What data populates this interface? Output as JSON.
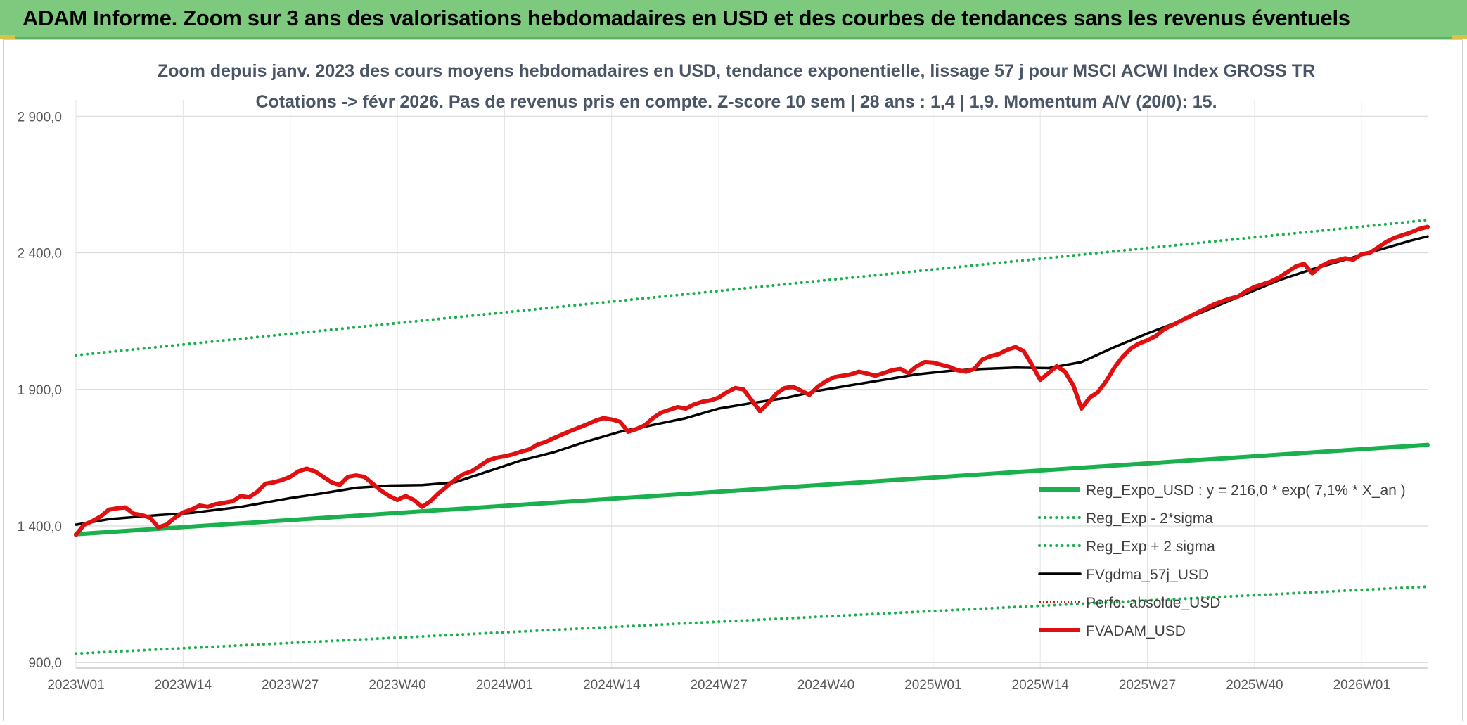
{
  "header": {
    "title": "ADAM Informe. Zoom sur 3 ans des valorisations hebdomadaires en USD et des courbes de tendances sans les revenus éventuels"
  },
  "chart_data": {
    "type": "line",
    "title": "Zoom depuis janv. 2023 des cours moyens hebdomadaires en USD, tendance exponentielle, lissage 57 j pour MSCI ACWI Index GROSS TR",
    "subtitle": "Cotations -> févr 2026. Pas de revenus pris en compte. Z-score 10 sem | 28 ans : 1,4 | 1,9. Momentum A/V (20/0): 15.",
    "xlabel": "",
    "ylabel": "",
    "ylim": [
      880,
      2960
    ],
    "yticks": [
      {
        "value": 900,
        "label": "900,0"
      },
      {
        "value": 1400,
        "label": "1 400,0"
      },
      {
        "value": 1900,
        "label": "1 900,0"
      },
      {
        "value": 2400,
        "label": "2 400,0"
      },
      {
        "value": 2900,
        "label": "2 900,0"
      }
    ],
    "xlim": [
      0,
      164
    ],
    "xticks": [
      {
        "index": 0,
        "label": "2023W01"
      },
      {
        "index": 13,
        "label": "2023W14"
      },
      {
        "index": 26,
        "label": "2023W27"
      },
      {
        "index": 39,
        "label": "2023W40"
      },
      {
        "index": 52,
        "label": "2024W01"
      },
      {
        "index": 65,
        "label": "2024W14"
      },
      {
        "index": 78,
        "label": "2024W27"
      },
      {
        "index": 91,
        "label": "2024W40"
      },
      {
        "index": 104,
        "label": "2025W01"
      },
      {
        "index": 117,
        "label": "2025W14"
      },
      {
        "index": 130,
        "label": "2025W27"
      },
      {
        "index": 143,
        "label": "2025W40"
      },
      {
        "index": 156,
        "label": "2026W01"
      }
    ],
    "grid": true,
    "legend_position": "bottom-right",
    "series": [
      {
        "name": "Reg_Expo_USD : y = 216,0 * exp( 7,1% *  X_an )",
        "color": "#1ab04e",
        "style": "solid-thick",
        "points": [
          [
            0,
            1370
          ],
          [
            164,
            1697
          ]
        ]
      },
      {
        "name": "Reg_Exp - 2*sigma",
        "color": "#1ab04e",
        "style": "dotted",
        "points": [
          [
            0,
            933
          ],
          [
            164,
            1178
          ]
        ]
      },
      {
        "name": "Reg_Exp + 2 sigma",
        "color": "#1ab04e",
        "style": "dotted",
        "points": [
          [
            0,
            2025
          ],
          [
            164,
            2520
          ]
        ]
      },
      {
        "name": "FVgdma_57j_USD",
        "color": "#000000",
        "style": "solid",
        "points": [
          [
            0,
            1405
          ],
          [
            4,
            1425
          ],
          [
            10,
            1440
          ],
          [
            14,
            1448
          ],
          [
            20,
            1470
          ],
          [
            26,
            1502
          ],
          [
            30,
            1520
          ],
          [
            34,
            1540
          ],
          [
            38,
            1548
          ],
          [
            42,
            1550
          ],
          [
            46,
            1560
          ],
          [
            50,
            1600
          ],
          [
            54,
            1640
          ],
          [
            58,
            1670
          ],
          [
            62,
            1710
          ],
          [
            66,
            1745
          ],
          [
            70,
            1770
          ],
          [
            74,
            1795
          ],
          [
            78,
            1830
          ],
          [
            82,
            1850
          ],
          [
            86,
            1868
          ],
          [
            90,
            1895
          ],
          [
            94,
            1915
          ],
          [
            98,
            1935
          ],
          [
            102,
            1955
          ],
          [
            106,
            1968
          ],
          [
            110,
            1975
          ],
          [
            114,
            1980
          ],
          [
            118,
            1978
          ],
          [
            122,
            2000
          ],
          [
            126,
            2055
          ],
          [
            130,
            2105
          ],
          [
            134,
            2150
          ],
          [
            138,
            2200
          ],
          [
            142,
            2250
          ],
          [
            146,
            2300
          ],
          [
            150,
            2340
          ],
          [
            154,
            2375
          ],
          [
            158,
            2410
          ],
          [
            162,
            2445
          ],
          [
            164,
            2460
          ]
        ]
      },
      {
        "name": "Perfo. absolue_USD",
        "color": "#e01010",
        "style": "dotted-thin",
        "points": []
      },
      {
        "name": "FVADAM_USD",
        "color": "#e01010",
        "style": "solid-thick",
        "points": [
          [
            0,
            1368
          ],
          [
            1,
            1405
          ],
          [
            2,
            1418
          ],
          [
            3,
            1435
          ],
          [
            4,
            1460
          ],
          [
            5,
            1465
          ],
          [
            6,
            1468
          ],
          [
            7,
            1445
          ],
          [
            8,
            1440
          ],
          [
            9,
            1430
          ],
          [
            10,
            1395
          ],
          [
            11,
            1405
          ],
          [
            12,
            1430
          ],
          [
            13,
            1450
          ],
          [
            14,
            1460
          ],
          [
            15,
            1475
          ],
          [
            16,
            1470
          ],
          [
            17,
            1480
          ],
          [
            18,
            1485
          ],
          [
            19,
            1490
          ],
          [
            20,
            1510
          ],
          [
            21,
            1505
          ],
          [
            22,
            1525
          ],
          [
            23,
            1555
          ],
          [
            24,
            1560
          ],
          [
            25,
            1568
          ],
          [
            26,
            1580
          ],
          [
            27,
            1600
          ],
          [
            28,
            1610
          ],
          [
            29,
            1600
          ],
          [
            30,
            1580
          ],
          [
            31,
            1560
          ],
          [
            32,
            1550
          ],
          [
            33,
            1580
          ],
          [
            34,
            1585
          ],
          [
            35,
            1580
          ],
          [
            36,
            1555
          ],
          [
            37,
            1530
          ],
          [
            38,
            1510
          ],
          [
            39,
            1495
          ],
          [
            40,
            1510
          ],
          [
            41,
            1495
          ],
          [
            42,
            1470
          ],
          [
            43,
            1490
          ],
          [
            44,
            1520
          ],
          [
            45,
            1545
          ],
          [
            46,
            1570
          ],
          [
            47,
            1590
          ],
          [
            48,
            1600
          ],
          [
            49,
            1620
          ],
          [
            50,
            1640
          ],
          [
            51,
            1650
          ],
          [
            52,
            1655
          ],
          [
            53,
            1662
          ],
          [
            54,
            1672
          ],
          [
            55,
            1680
          ],
          [
            56,
            1698
          ],
          [
            57,
            1708
          ],
          [
            58,
            1722
          ],
          [
            59,
            1735
          ],
          [
            60,
            1748
          ],
          [
            61,
            1760
          ],
          [
            62,
            1772
          ],
          [
            63,
            1785
          ],
          [
            64,
            1795
          ],
          [
            65,
            1790
          ],
          [
            66,
            1782
          ],
          [
            67,
            1745
          ],
          [
            68,
            1755
          ],
          [
            69,
            1768
          ],
          [
            70,
            1795
          ],
          [
            71,
            1815
          ],
          [
            72,
            1825
          ],
          [
            73,
            1835
          ],
          [
            74,
            1830
          ],
          [
            75,
            1845
          ],
          [
            76,
            1855
          ],
          [
            77,
            1860
          ],
          [
            78,
            1870
          ],
          [
            79,
            1890
          ],
          [
            80,
            1905
          ],
          [
            81,
            1900
          ],
          [
            82,
            1860
          ],
          [
            83,
            1820
          ],
          [
            84,
            1850
          ],
          [
            85,
            1885
          ],
          [
            86,
            1905
          ],
          [
            87,
            1910
          ],
          [
            88,
            1895
          ],
          [
            89,
            1880
          ],
          [
            90,
            1910
          ],
          [
            91,
            1930
          ],
          [
            92,
            1945
          ],
          [
            93,
            1950
          ],
          [
            94,
            1955
          ],
          [
            95,
            1965
          ],
          [
            96,
            1958
          ],
          [
            97,
            1950
          ],
          [
            98,
            1960
          ],
          [
            99,
            1970
          ],
          [
            100,
            1975
          ],
          [
            101,
            1960
          ],
          [
            102,
            1985
          ],
          [
            103,
            2000
          ],
          [
            104,
            1998
          ],
          [
            105,
            1990
          ],
          [
            106,
            1982
          ],
          [
            107,
            1970
          ],
          [
            108,
            1965
          ],
          [
            109,
            1975
          ],
          [
            110,
            2010
          ],
          [
            111,
            2022
          ],
          [
            112,
            2030
          ],
          [
            113,
            2045
          ],
          [
            114,
            2055
          ],
          [
            115,
            2040
          ],
          [
            116,
            1990
          ],
          [
            117,
            1935
          ],
          [
            118,
            1960
          ],
          [
            119,
            1985
          ],
          [
            120,
            1965
          ],
          [
            121,
            1915
          ],
          [
            122,
            1830
          ],
          [
            123,
            1870
          ],
          [
            124,
            1890
          ],
          [
            125,
            1930
          ],
          [
            126,
            1980
          ],
          [
            127,
            2020
          ],
          [
            128,
            2050
          ],
          [
            129,
            2068
          ],
          [
            130,
            2080
          ],
          [
            131,
            2095
          ],
          [
            132,
            2120
          ],
          [
            133,
            2135
          ],
          [
            134,
            2150
          ],
          [
            135,
            2165
          ],
          [
            136,
            2180
          ],
          [
            137,
            2195
          ],
          [
            138,
            2210
          ],
          [
            139,
            2222
          ],
          [
            140,
            2232
          ],
          [
            141,
            2240
          ],
          [
            142,
            2260
          ],
          [
            143,
            2275
          ],
          [
            144,
            2285
          ],
          [
            145,
            2295
          ],
          [
            146,
            2310
          ],
          [
            147,
            2330
          ],
          [
            148,
            2350
          ],
          [
            149,
            2360
          ],
          [
            150,
            2325
          ],
          [
            151,
            2350
          ],
          [
            152,
            2365
          ],
          [
            153,
            2372
          ],
          [
            154,
            2380
          ],
          [
            155,
            2375
          ],
          [
            156,
            2395
          ],
          [
            157,
            2400
          ],
          [
            158,
            2420
          ],
          [
            159,
            2440
          ],
          [
            160,
            2455
          ],
          [
            161,
            2465
          ],
          [
            162,
            2475
          ],
          [
            163,
            2488
          ],
          [
            164,
            2495
          ]
        ]
      }
    ]
  }
}
